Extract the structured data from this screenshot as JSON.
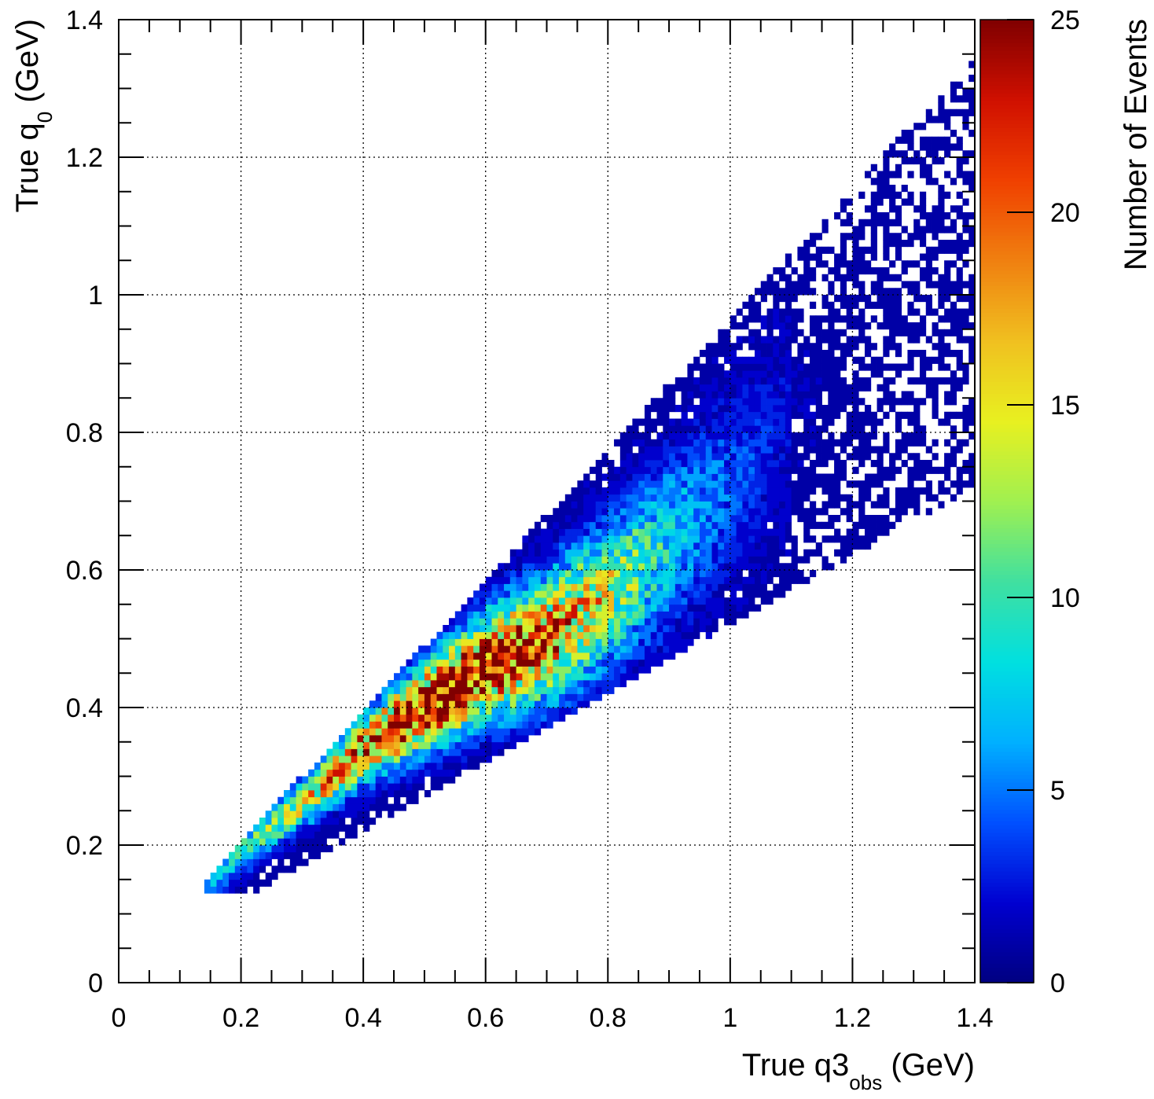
{
  "chart_data": {
    "type": "heatmap",
    "title": "",
    "xlabel": {
      "main": "True q3",
      "sub": "obs",
      "unit": " (GeV)"
    },
    "ylabel": {
      "main": "True q",
      "sub": "0",
      "unit": " (GeV)"
    },
    "zlabel": "Number of Events",
    "xlim": [
      0,
      1.4
    ],
    "ylim": [
      0,
      1.4
    ],
    "zlim": [
      0,
      25
    ],
    "grid": true,
    "bins": {
      "nx": 140,
      "ny": 140
    },
    "xticks": [
      "0",
      "0.2",
      "0.4",
      "0.6",
      "0.8",
      "1",
      "1.2",
      "1.4"
    ],
    "xtick_values": [
      0,
      0.2,
      0.4,
      0.6,
      0.8,
      1.0,
      1.2,
      1.4
    ],
    "yticks": [
      "0",
      "0.2",
      "0.4",
      "0.6",
      "0.8",
      "1",
      "1.2",
      "1.4"
    ],
    "ytick_values": [
      0,
      0.2,
      0.4,
      0.6,
      0.8,
      1.0,
      1.2,
      1.4
    ],
    "zticks": [
      "0",
      "5",
      "10",
      "15",
      "20",
      "25"
    ],
    "ztick_values": [
      0,
      5,
      10,
      15,
      20,
      25
    ],
    "colormap": [
      "#000080",
      "#0000d0",
      "#0050ff",
      "#00b0ff",
      "#00e0e0",
      "#40e0a0",
      "#a0f050",
      "#e8f020",
      "#f0c020",
      "#f08010",
      "#f04000",
      "#d01000",
      "#800000"
    ],
    "density_model": {
      "ridge": [
        [
          0.15,
          0.15
        ],
        [
          0.2,
          0.19
        ],
        [
          0.3,
          0.26
        ],
        [
          0.4,
          0.34
        ],
        [
          0.5,
          0.4
        ],
        [
          0.6,
          0.46
        ],
        [
          0.7,
          0.5
        ],
        [
          0.8,
          0.56
        ],
        [
          0.9,
          0.64
        ],
        [
          1.0,
          0.72
        ],
        [
          1.1,
          0.82
        ],
        [
          1.2,
          0.92
        ],
        [
          1.3,
          1.04
        ],
        [
          1.4,
          1.14
        ]
      ],
      "lower_edge_slope": 0.5,
      "lower_edge_offset": 0.03,
      "upper_edge_slope": 0.95,
      "upper_edge_offset": 0.005,
      "peak_x": 0.55,
      "peak_count": 24
    }
  }
}
